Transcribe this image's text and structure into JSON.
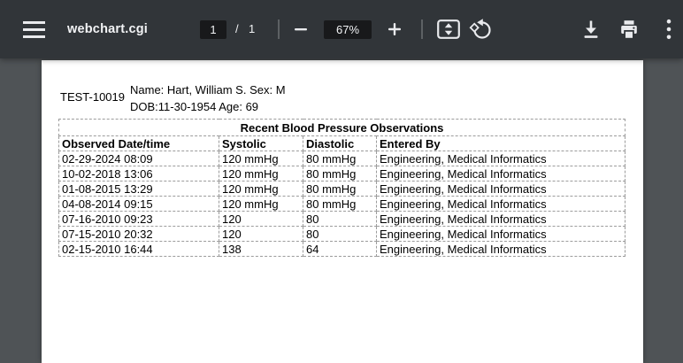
{
  "toolbar": {
    "title": "webchart.cgi",
    "page_current": "1",
    "page_divider": "/",
    "page_total": "1",
    "zoom_level": "67%",
    "icons": {
      "menu": "hamburger-menu",
      "zoom_out": "minus",
      "zoom_in": "plus",
      "fit": "fit-to-page",
      "rotate": "rotate-counterclockwise",
      "download": "download-arrow",
      "print": "printer",
      "more": "kebab-menu"
    }
  },
  "document": {
    "patient_id": "TEST-10019",
    "patient_info_line1": "Name: Hart, William S. Sex: M",
    "patient_info_line2": "DOB:11-30-1954 Age: 69",
    "table": {
      "title": "Recent Blood Pressure Observations",
      "columns": [
        "Observed Date/time",
        "Systolic",
        "Diastolic",
        "Entered By"
      ],
      "rows": [
        [
          "02-29-2024 08:09",
          "120 mmHg",
          "80 mmHg",
          "Engineering, Medical Informatics"
        ],
        [
          "10-02-2018 13:06",
          "120 mmHg",
          "80 mmHg",
          "Engineering, Medical Informatics"
        ],
        [
          "01-08-2015 13:29",
          "120 mmHg",
          "80 mmHg",
          "Engineering, Medical Informatics"
        ],
        [
          "04-08-2014 09:15",
          "120 mmHg",
          "80 mmHg",
          "Engineering, Medical Informatics"
        ],
        [
          "07-16-2010 09:23",
          "120",
          "80",
          "Engineering, Medical Informatics"
        ],
        [
          "07-15-2010 20:32",
          "120",
          "80",
          "Engineering, Medical Informatics"
        ],
        [
          "02-15-2010 16:44",
          "138",
          "64",
          "Engineering, Medical Informatics"
        ]
      ]
    }
  },
  "colors": {
    "toolbar_bg": "#313539",
    "viewer_bg": "#4f5356",
    "control_bg": "#18191b",
    "toolbar_text": "#f2f3f5",
    "icon": "#e9eaed",
    "page_bg": "#ffffff",
    "table_border": "#9c9c9c",
    "doc_text": "#000000"
  }
}
